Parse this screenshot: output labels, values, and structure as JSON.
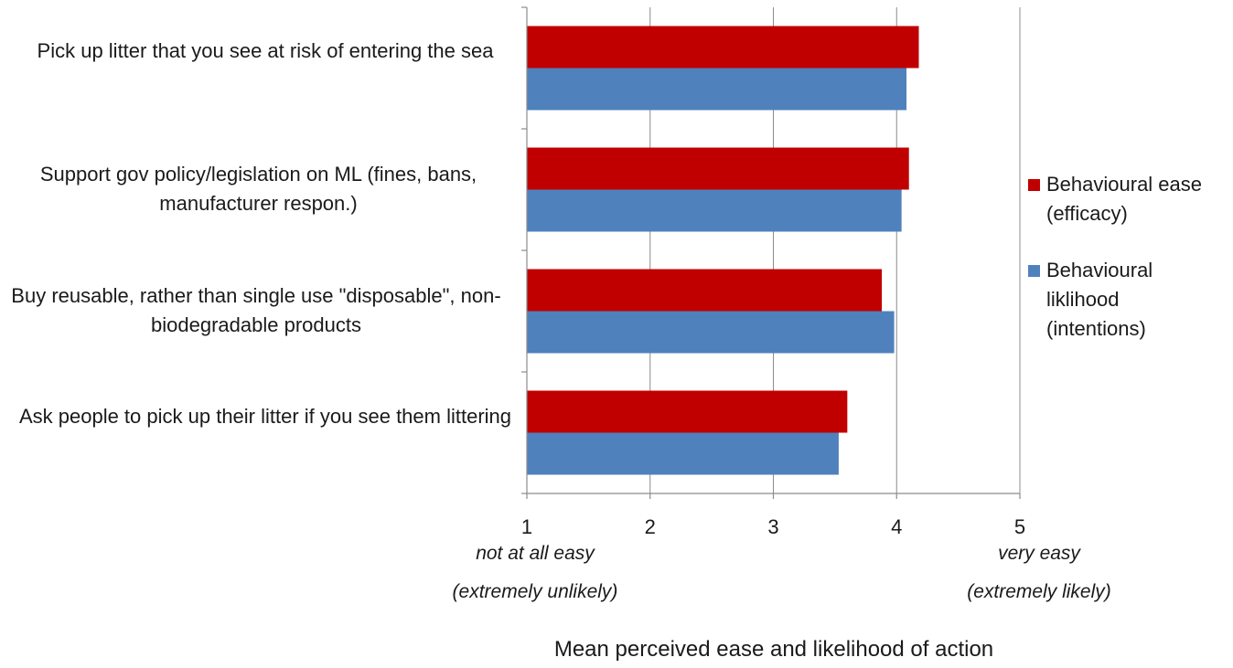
{
  "chart_data": {
    "type": "bar",
    "orientation": "horizontal",
    "categories": [
      "Pick up litter that you see at risk of entering the sea",
      "Support gov policy/legislation on ML (fines, bans, manufacturer respon.)",
      "Buy reusable, rather than single use \"disposable\", non-biodegradable products",
      "Ask people to pick up their litter if you see them littering"
    ],
    "series": [
      {
        "name": "Behavioural ease (efficacy)",
        "color": "#C00000",
        "values": [
          4.18,
          4.1,
          3.88,
          3.6
        ]
      },
      {
        "name": "Behavioural liklihood (intentions)",
        "color": "#4F81BD",
        "values": [
          4.08,
          4.04,
          3.98,
          3.53
        ]
      }
    ],
    "xlim": [
      1,
      5
    ],
    "xticks": [
      "1",
      "2",
      "3",
      "4",
      "5"
    ],
    "xlabel": "Mean perceived ease and likelihood of action",
    "scale_anchors": {
      "low": [
        "not at all easy",
        "(extremely unlikely)"
      ],
      "high": [
        "very easy",
        "(extremely likely)"
      ]
    },
    "grid": true,
    "legend_position": "right"
  },
  "legend": [
    {
      "label": "Behavioural ease\n(efficacy)",
      "color": "#C00000"
    },
    {
      "label": "Behavioural\nliklihood\n(intentions)",
      "color": "#4F81BD"
    }
  ]
}
